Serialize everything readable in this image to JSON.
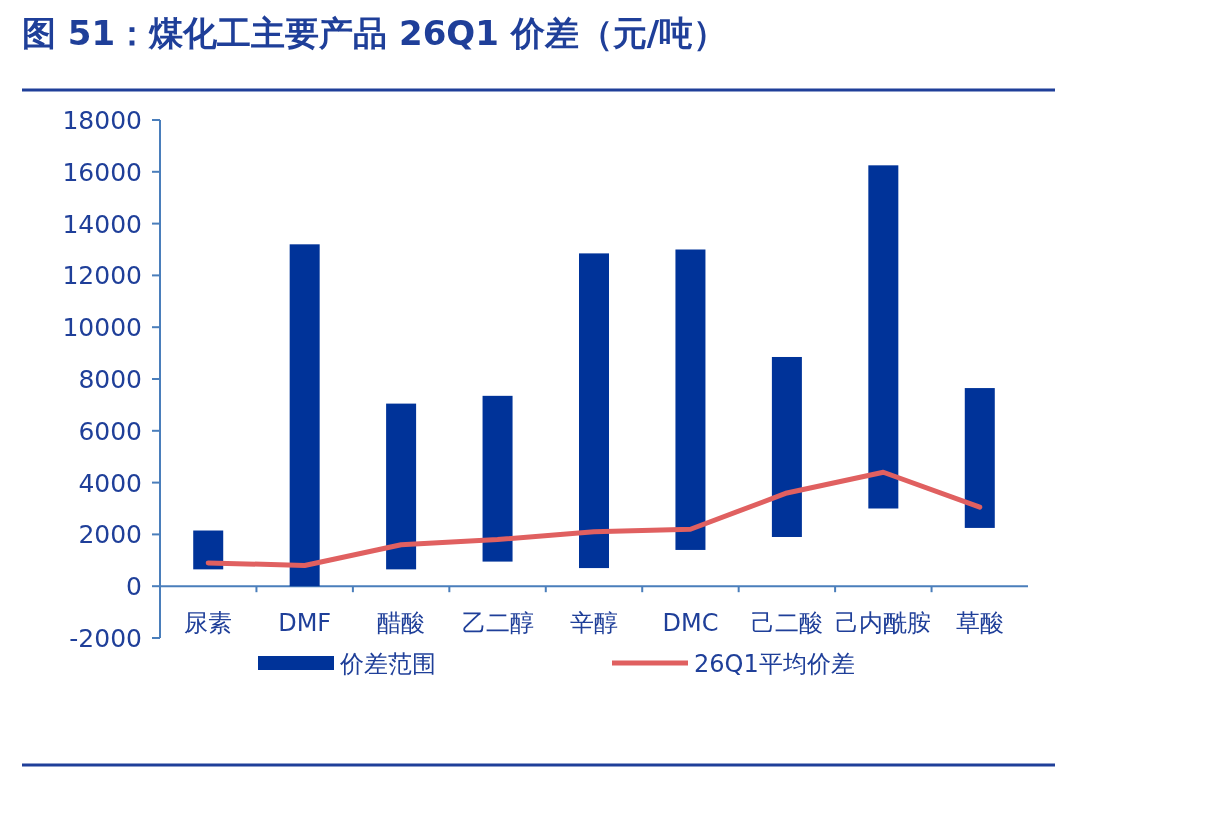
{
  "chart_data": {
    "type": "bar",
    "title": "图 51：煤化工主要产品 26Q1 价差（元/吨）",
    "categories": [
      "尿素",
      "DMF",
      "醋酸",
      "乙二醇",
      "辛醇",
      "DMC",
      "己二酸",
      "己内酰胺",
      "草酸"
    ],
    "series": [
      {
        "name": "价差范围",
        "color": "#003399",
        "base": [
          650,
          0,
          650,
          950,
          700,
          1400,
          1900,
          3000,
          2250
        ],
        "values": [
          1500,
          13200,
          6400,
          6400,
          12150,
          11600,
          6950,
          13250,
          5400
        ]
      },
      {
        "name": "26Q1平均价差",
        "type": "line",
        "color": "#e06060",
        "values": [
          900,
          800,
          1600,
          1800,
          2100,
          2200,
          3600,
          4400,
          3050
        ]
      }
    ],
    "ylim": [
      -2000,
      18000
    ],
    "yticks": [
      -2000,
      0,
      2000,
      4000,
      6000,
      8000,
      10000,
      12000,
      14000,
      16000,
      18000
    ],
    "legend": "bottom"
  }
}
